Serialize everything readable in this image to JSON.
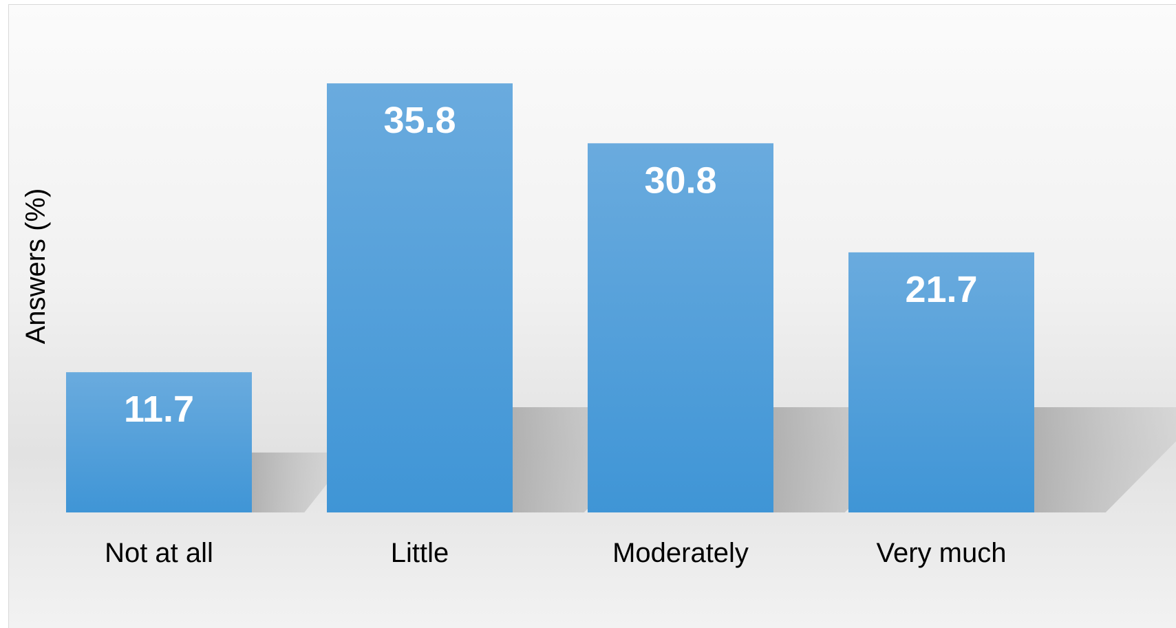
{
  "chart_data": {
    "type": "bar",
    "title": "",
    "xlabel": "",
    "ylabel": "Answers (%)",
    "categories": [
      "Not at all",
      "Little",
      "Moderately",
      "Very much"
    ],
    "values": [
      11.7,
      35.8,
      30.8,
      21.7
    ],
    "data_labels": [
      "11.7",
      "35.8",
      "30.8",
      "21.7"
    ],
    "ylim": [
      0,
      40
    ],
    "grid": false,
    "legend": "none",
    "colors": {
      "bar_top": "#6aabde",
      "bar_bottom": "#3f95d6",
      "shadow": "#b3b3b3",
      "label": "#ffffff"
    }
  }
}
